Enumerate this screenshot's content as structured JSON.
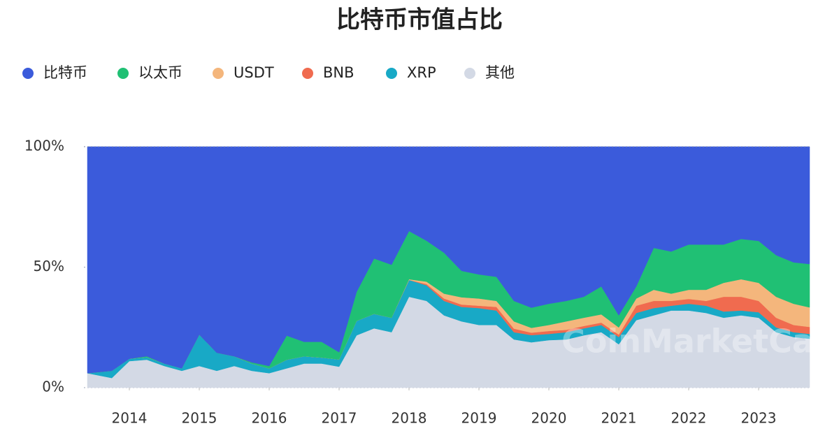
{
  "chart_data": {
    "type": "stacked_area",
    "title": "比特币市值占比",
    "watermark": "CoinMarketCap",
    "x": [
      2013.4,
      2013.75,
      2014.0,
      2014.25,
      2014.5,
      2014.75,
      2015.0,
      2015.25,
      2015.5,
      2015.75,
      2016.0,
      2016.25,
      2016.5,
      2016.75,
      2017.0,
      2017.25,
      2017.5,
      2017.75,
      2018.0,
      2018.25,
      2018.5,
      2018.75,
      2019.0,
      2019.25,
      2019.5,
      2019.75,
      2020.0,
      2020.25,
      2020.5,
      2020.75,
      2021.0,
      2021.25,
      2021.5,
      2021.75,
      2022.0,
      2022.25,
      2022.5,
      2022.75,
      2023.0,
      2023.25,
      2023.5,
      2023.73
    ],
    "series": [
      {
        "name": "比特币",
        "color": "#3b5bdb",
        "values": [
          94,
          93,
          88,
          87,
          90,
          92,
          78,
          85.5,
          87,
          89.5,
          91,
          78.4,
          81,
          81,
          85.3,
          60.3,
          46.4,
          49,
          35,
          39,
          44,
          51.5,
          53,
          54,
          64,
          66.8,
          65.2,
          64,
          62.3,
          58,
          70,
          58,
          42,
          43.5,
          40.6,
          40.6,
          40.6,
          38.3,
          39.1,
          45,
          48,
          48.7
        ]
      },
      {
        "name": "以太币",
        "color": "#20c074",
        "values": [
          0,
          0,
          0,
          0.4,
          0,
          0,
          0,
          0,
          0,
          0.5,
          1,
          10,
          6,
          6.5,
          3,
          12,
          23,
          22,
          20,
          17,
          17,
          11,
          10,
          10,
          8.5,
          8.4,
          8.8,
          8.5,
          8.7,
          11.6,
          5,
          5,
          17.4,
          17.5,
          18.8,
          18.8,
          15.9,
          16.7,
          17.4,
          17.3,
          17.2,
          18
        ]
      },
      {
        "name": "USDT",
        "color": "#f4b67c",
        "values": [
          0,
          0,
          0,
          0,
          0,
          0,
          0,
          0,
          0,
          0,
          0,
          0,
          0,
          0,
          0,
          0,
          0,
          0,
          0.3,
          1,
          2,
          3,
          3,
          2.5,
          3,
          2,
          2.5,
          3.5,
          3.4,
          3.4,
          3,
          3,
          4.6,
          3,
          3.8,
          4.6,
          5.8,
          7.3,
          7.5,
          8.7,
          8.8,
          8.1
        ]
      },
      {
        "name": "BNB",
        "color": "#f06b4f",
        "values": [
          0,
          0,
          0,
          0,
          0,
          0,
          0,
          0,
          0,
          0,
          0,
          0,
          0,
          0,
          0,
          0,
          0,
          0,
          0,
          0.5,
          1,
          1,
          1,
          1.5,
          1.5,
          1,
          1.2,
          1,
          1,
          1,
          1,
          3,
          3,
          2,
          2,
          2,
          6.1,
          5.7,
          4.7,
          4,
          3,
          2.9
        ]
      },
      {
        "name": "XRP",
        "color": "#18a9c6",
        "values": [
          0,
          3,
          1,
          1,
          1,
          1,
          13,
          7.5,
          4,
          3,
          2,
          3.6,
          3,
          2.5,
          3,
          6,
          6,
          6,
          7,
          6.5,
          6,
          6,
          7,
          6,
          3,
          3,
          2.6,
          3,
          2.9,
          3,
          3,
          3,
          3,
          2,
          2.8,
          3,
          2.6,
          2,
          2.3,
          2,
          2,
          2
        ]
      },
      {
        "name": "其他",
        "color": "#d3d9e5",
        "values": [
          6,
          4,
          11,
          11.6,
          9,
          7,
          9,
          7,
          9,
          7,
          6,
          8,
          10,
          10,
          8.7,
          21.7,
          24.6,
          23,
          37.7,
          36,
          30,
          27.5,
          26,
          26,
          20,
          18.8,
          19.7,
          20,
          21.7,
          23,
          18,
          28,
          30,
          32,
          32,
          31,
          29,
          30,
          29,
          23,
          21,
          20.3
        ]
      }
    ],
    "xlim": [
      2013.35,
      2023.73
    ],
    "xticks": [
      2014,
      2015,
      2016,
      2017,
      2018,
      2019,
      2020,
      2021,
      2022,
      2023
    ],
    "ylim": [
      0,
      100
    ],
    "yticks": [
      {
        "value": 0,
        "label": "0%"
      },
      {
        "value": 50,
        "label": "50%"
      },
      {
        "value": 100,
        "label": "100%"
      }
    ],
    "grid": true
  }
}
